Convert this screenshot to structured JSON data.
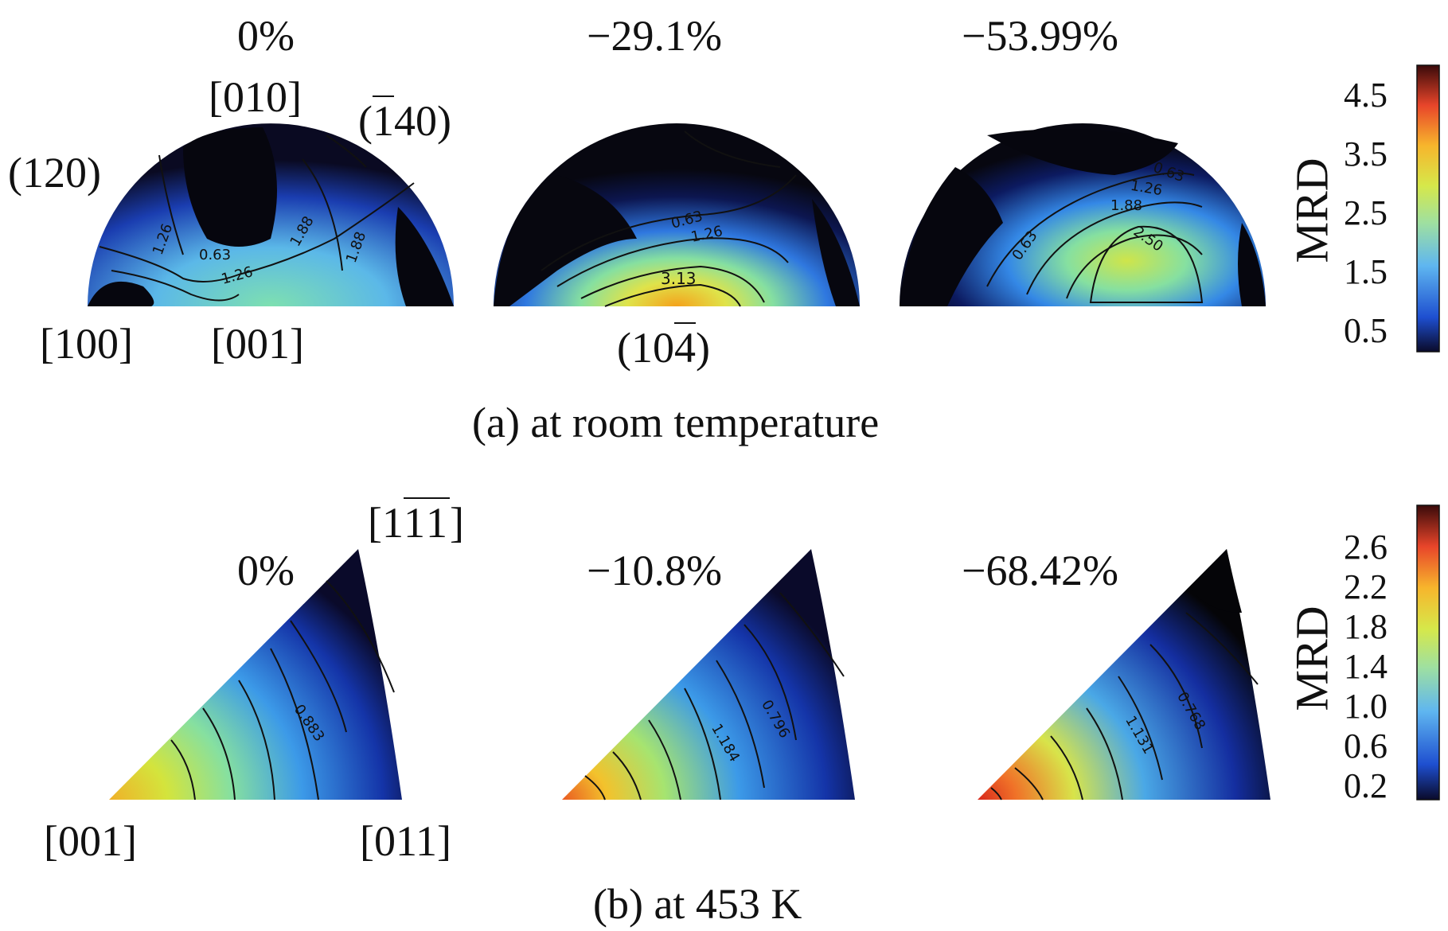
{
  "panel_a": {
    "caption": "(a) at room temperature",
    "strains": [
      "0%",
      "−29.1%",
      "−53.99%"
    ],
    "directions": {
      "top": "[010]",
      "left_bottom": "[100]",
      "center_bottom": "[001]",
      "plane_left": "(120)",
      "plane_right_pre": "(",
      "plane_right_bar": "1",
      "plane_right_post": "40)",
      "plane_bottom_pre": "(10",
      "plane_bottom_bar": "4",
      "plane_bottom_post": ")"
    },
    "contour_labels": {
      "map1": [
        "1.26",
        "0.63",
        "1.26",
        "1.88",
        "1.88"
      ],
      "map2": [
        "0.63",
        "1.26",
        "3.13"
      ],
      "map3": [
        "0.63",
        "0.63",
        "1.26",
        "1.88",
        "2.50"
      ]
    },
    "colorbar": {
      "title": "MRD",
      "ticks": [
        "4.5",
        "3.5",
        "2.5",
        "1.5",
        "0.5"
      ]
    }
  },
  "panel_b": {
    "caption": "(b) at 453 K",
    "strains": [
      "0%",
      "−10.8%",
      "−68.42%"
    ],
    "directions": {
      "corner_left": "[001]",
      "corner_right": "[011]",
      "corner_top_pre": "[1",
      "corner_top_bar": "11",
      "corner_top_post": "]"
    },
    "contour_labels": {
      "map1": [
        "0.883"
      ],
      "map2": [
        "1.184",
        "0.796"
      ],
      "map3": [
        "1.131",
        "0.768"
      ]
    },
    "colorbar": {
      "title": "MRD",
      "ticks": [
        "2.6",
        "2.2",
        "1.8",
        "1.4",
        "1.0",
        "0.6",
        "0.2"
      ]
    }
  },
  "colors": {
    "jet_low": "#0b0b1e",
    "jet_mid": "#7fd3c8",
    "jet_high": "#e8392a"
  }
}
